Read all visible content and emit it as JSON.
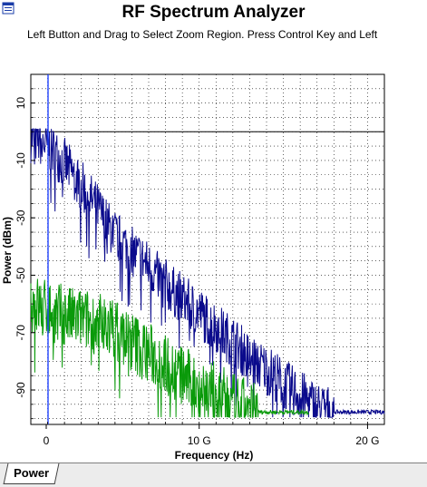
{
  "window": {
    "title": "RF Spectrum Analyzer",
    "subtitle": "Left Button and Drag to Select Zoom Region. Press Control Key and Left"
  },
  "tabs": [
    {
      "label": "Power",
      "active": true
    }
  ],
  "colors": {
    "series1": "#0a0a8c",
    "series2": "#0a9a0a",
    "grid": "#000000",
    "marker": "#2244ff"
  },
  "chart_data": {
    "type": "line",
    "title": "",
    "xlabel": "Frequency (Hz)",
    "ylabel": "Power (dBm)",
    "xlim": [
      0,
      21000000000
    ],
    "ylim": [
      -102,
      20
    ],
    "xticks": [
      {
        "value": 0,
        "label": "0"
      },
      {
        "value": 10000000000,
        "label": "10 G"
      },
      {
        "value": 20000000000,
        "label": "20 G"
      }
    ],
    "yticks": [
      {
        "value": 10,
        "label": "10"
      },
      {
        "value": -10,
        "label": "-10"
      },
      {
        "value": -30,
        "label": "-30"
      },
      {
        "value": -50,
        "label": "-50"
      },
      {
        "value": -70,
        "label": "-70"
      },
      {
        "value": -90,
        "label": "-90"
      }
    ],
    "reference_line_y": 0,
    "grid": true,
    "series": [
      {
        "color": "#0a0a8c",
        "x": [
          0,
          500000000,
          1000000000,
          1500000000,
          2000000000,
          2500000000,
          3000000000,
          3500000000,
          4000000000,
          4500000000,
          5000000000,
          5500000000,
          6000000000,
          6500000000,
          7000000000,
          7500000000,
          8000000000,
          8500000000,
          9000000000,
          9500000000,
          10000000000,
          10500000000,
          11000000000,
          11500000000,
          12000000000,
          12500000000,
          13000000000,
          13500000000,
          14000000000,
          14500000000,
          15000000000,
          15500000000,
          16000000000,
          16500000000,
          17000000000,
          17500000000,
          18000000000,
          18500000000,
          19000000000,
          19500000000,
          20000000000,
          20500000000,
          21000000000
        ],
        "values": [
          -1,
          -2,
          -4,
          -7,
          -10,
          -14,
          -18,
          -22,
          -26,
          -31,
          -35,
          -38,
          -41,
          -43,
          -46,
          -49,
          -52,
          -55,
          -57,
          -60,
          -62,
          -65,
          -67,
          -70,
          -72,
          -75,
          -78,
          -80,
          -82,
          -84,
          -87,
          -89,
          -91,
          -93,
          -95,
          -96,
          -97,
          -97,
          -98,
          -98,
          -98,
          -98,
          -98
        ]
      },
      {
        "color": "#0a9a0a",
        "x": [
          0,
          500000000,
          1000000000,
          1500000000,
          2000000000,
          2500000000,
          3000000000,
          3500000000,
          4000000000,
          4500000000,
          5000000000,
          5500000000,
          6000000000,
          6500000000,
          7000000000,
          7500000000,
          8000000000,
          8500000000,
          9000000000,
          9500000000,
          10000000000,
          10500000000,
          11000000000,
          11500000000,
          12000000000,
          12500000000,
          13000000000,
          13500000000,
          14000000000,
          14500000000,
          15000000000,
          15500000000,
          16000000000,
          16500000000
        ],
        "values": [
          -58,
          -60,
          -61,
          -62,
          -63,
          -64,
          -64,
          -65,
          -66,
          -66,
          -68,
          -70,
          -72,
          -74,
          -76,
          -78,
          -80,
          -82,
          -84,
          -86,
          -88,
          -89,
          -90,
          -92,
          -94,
          -95,
          -96,
          -97,
          -98,
          -98,
          -98,
          -98,
          -98,
          -98
        ]
      }
    ]
  }
}
